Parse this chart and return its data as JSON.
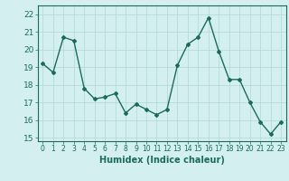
{
  "x": [
    0,
    1,
    2,
    3,
    4,
    5,
    6,
    7,
    8,
    9,
    10,
    11,
    12,
    13,
    14,
    15,
    16,
    17,
    18,
    19,
    20,
    21,
    22,
    23
  ],
  "y": [
    19.2,
    18.7,
    20.7,
    20.5,
    17.8,
    17.2,
    17.3,
    17.5,
    16.4,
    16.9,
    16.6,
    16.3,
    16.6,
    19.1,
    20.3,
    20.7,
    21.8,
    19.9,
    18.3,
    18.3,
    17.0,
    15.9,
    15.2,
    15.9
  ],
  "xlabel": "Humidex (Indice chaleur)",
  "ylim": [
    14.8,
    22.5
  ],
  "xlim": [
    -0.5,
    23.5
  ],
  "yticks": [
    15,
    16,
    17,
    18,
    19,
    20,
    21,
    22
  ],
  "xticks": [
    0,
    1,
    2,
    3,
    4,
    5,
    6,
    7,
    8,
    9,
    10,
    11,
    12,
    13,
    14,
    15,
    16,
    17,
    18,
    19,
    20,
    21,
    22,
    23
  ],
  "line_color": "#1a6b5a",
  "bg_color": "#d4efef",
  "grid_color": "#b0d8d8",
  "marker": "D",
  "marker_size": 2.0,
  "line_width": 1.0,
  "xlabel_fontsize": 7,
  "tick_fontsize": 5.5,
  "ytick_fontsize": 6.5
}
